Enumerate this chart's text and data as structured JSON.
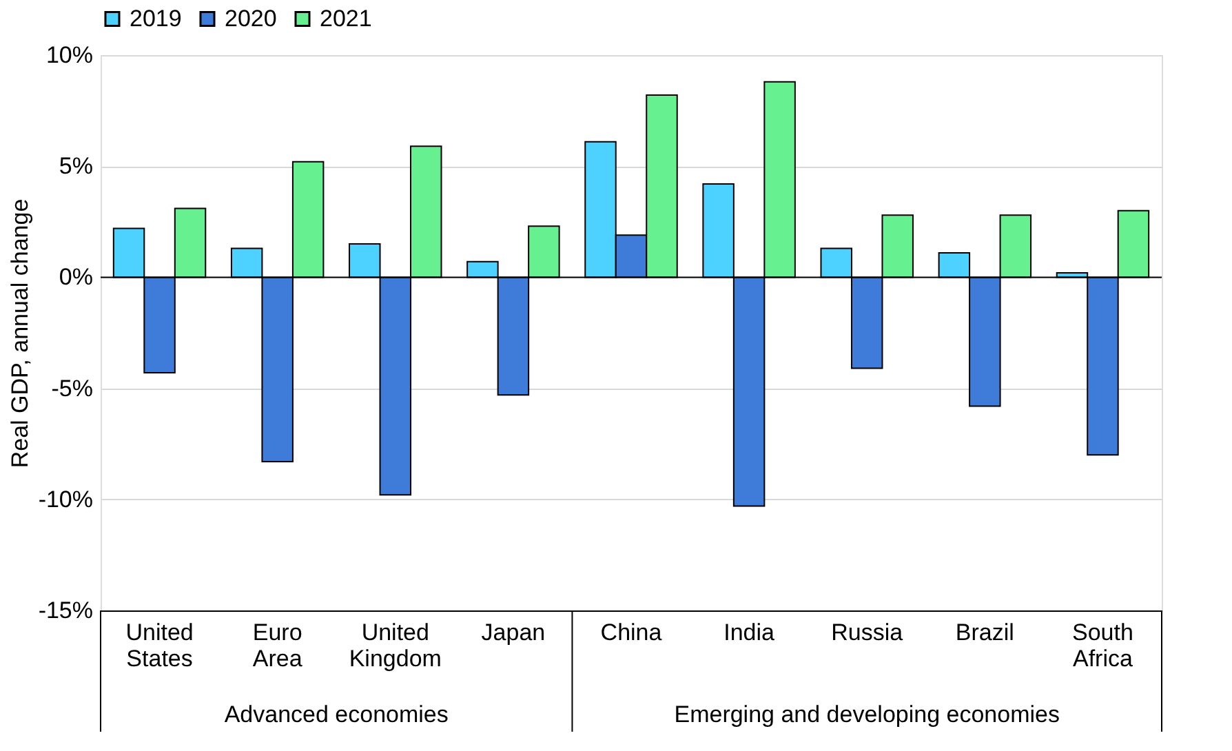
{
  "chart_data": {
    "type": "bar",
    "ylabel": "Real GDP, annual change",
    "categories": [
      "United States",
      "Euro Area",
      "United Kingdom",
      "Japan",
      "China",
      "India",
      "Russia",
      "Brazil",
      "South Africa"
    ],
    "series": [
      {
        "name": "2019",
        "color": "#4dd2ff",
        "values": [
          2.2,
          1.3,
          1.5,
          0.7,
          6.1,
          4.2,
          1.3,
          1.1,
          0.2
        ]
      },
      {
        "name": "2020",
        "color": "#3f7bd9",
        "values": [
          -4.3,
          -8.3,
          -9.8,
          -5.3,
          1.9,
          -10.3,
          -4.1,
          -5.8,
          -8.0
        ]
      },
      {
        "name": "2021",
        "color": "#66f08f",
        "values": [
          3.1,
          5.2,
          5.9,
          2.3,
          8.2,
          8.8,
          2.8,
          2.8,
          3.0
        ]
      }
    ],
    "ylim": [
      -15,
      10
    ],
    "yticks": [
      {
        "value": -15,
        "label": "-15%"
      },
      {
        "value": -10,
        "label": "-10%"
      },
      {
        "value": -5,
        "label": "-5%"
      },
      {
        "value": 0,
        "label": "0%"
      },
      {
        "value": 5,
        "label": "5%"
      },
      {
        "value": 10,
        "label": "10%"
      }
    ],
    "grid": "y",
    "legend": "top",
    "annotations": [
      "Advanced economies",
      "Emerging and developing economies"
    ]
  }
}
